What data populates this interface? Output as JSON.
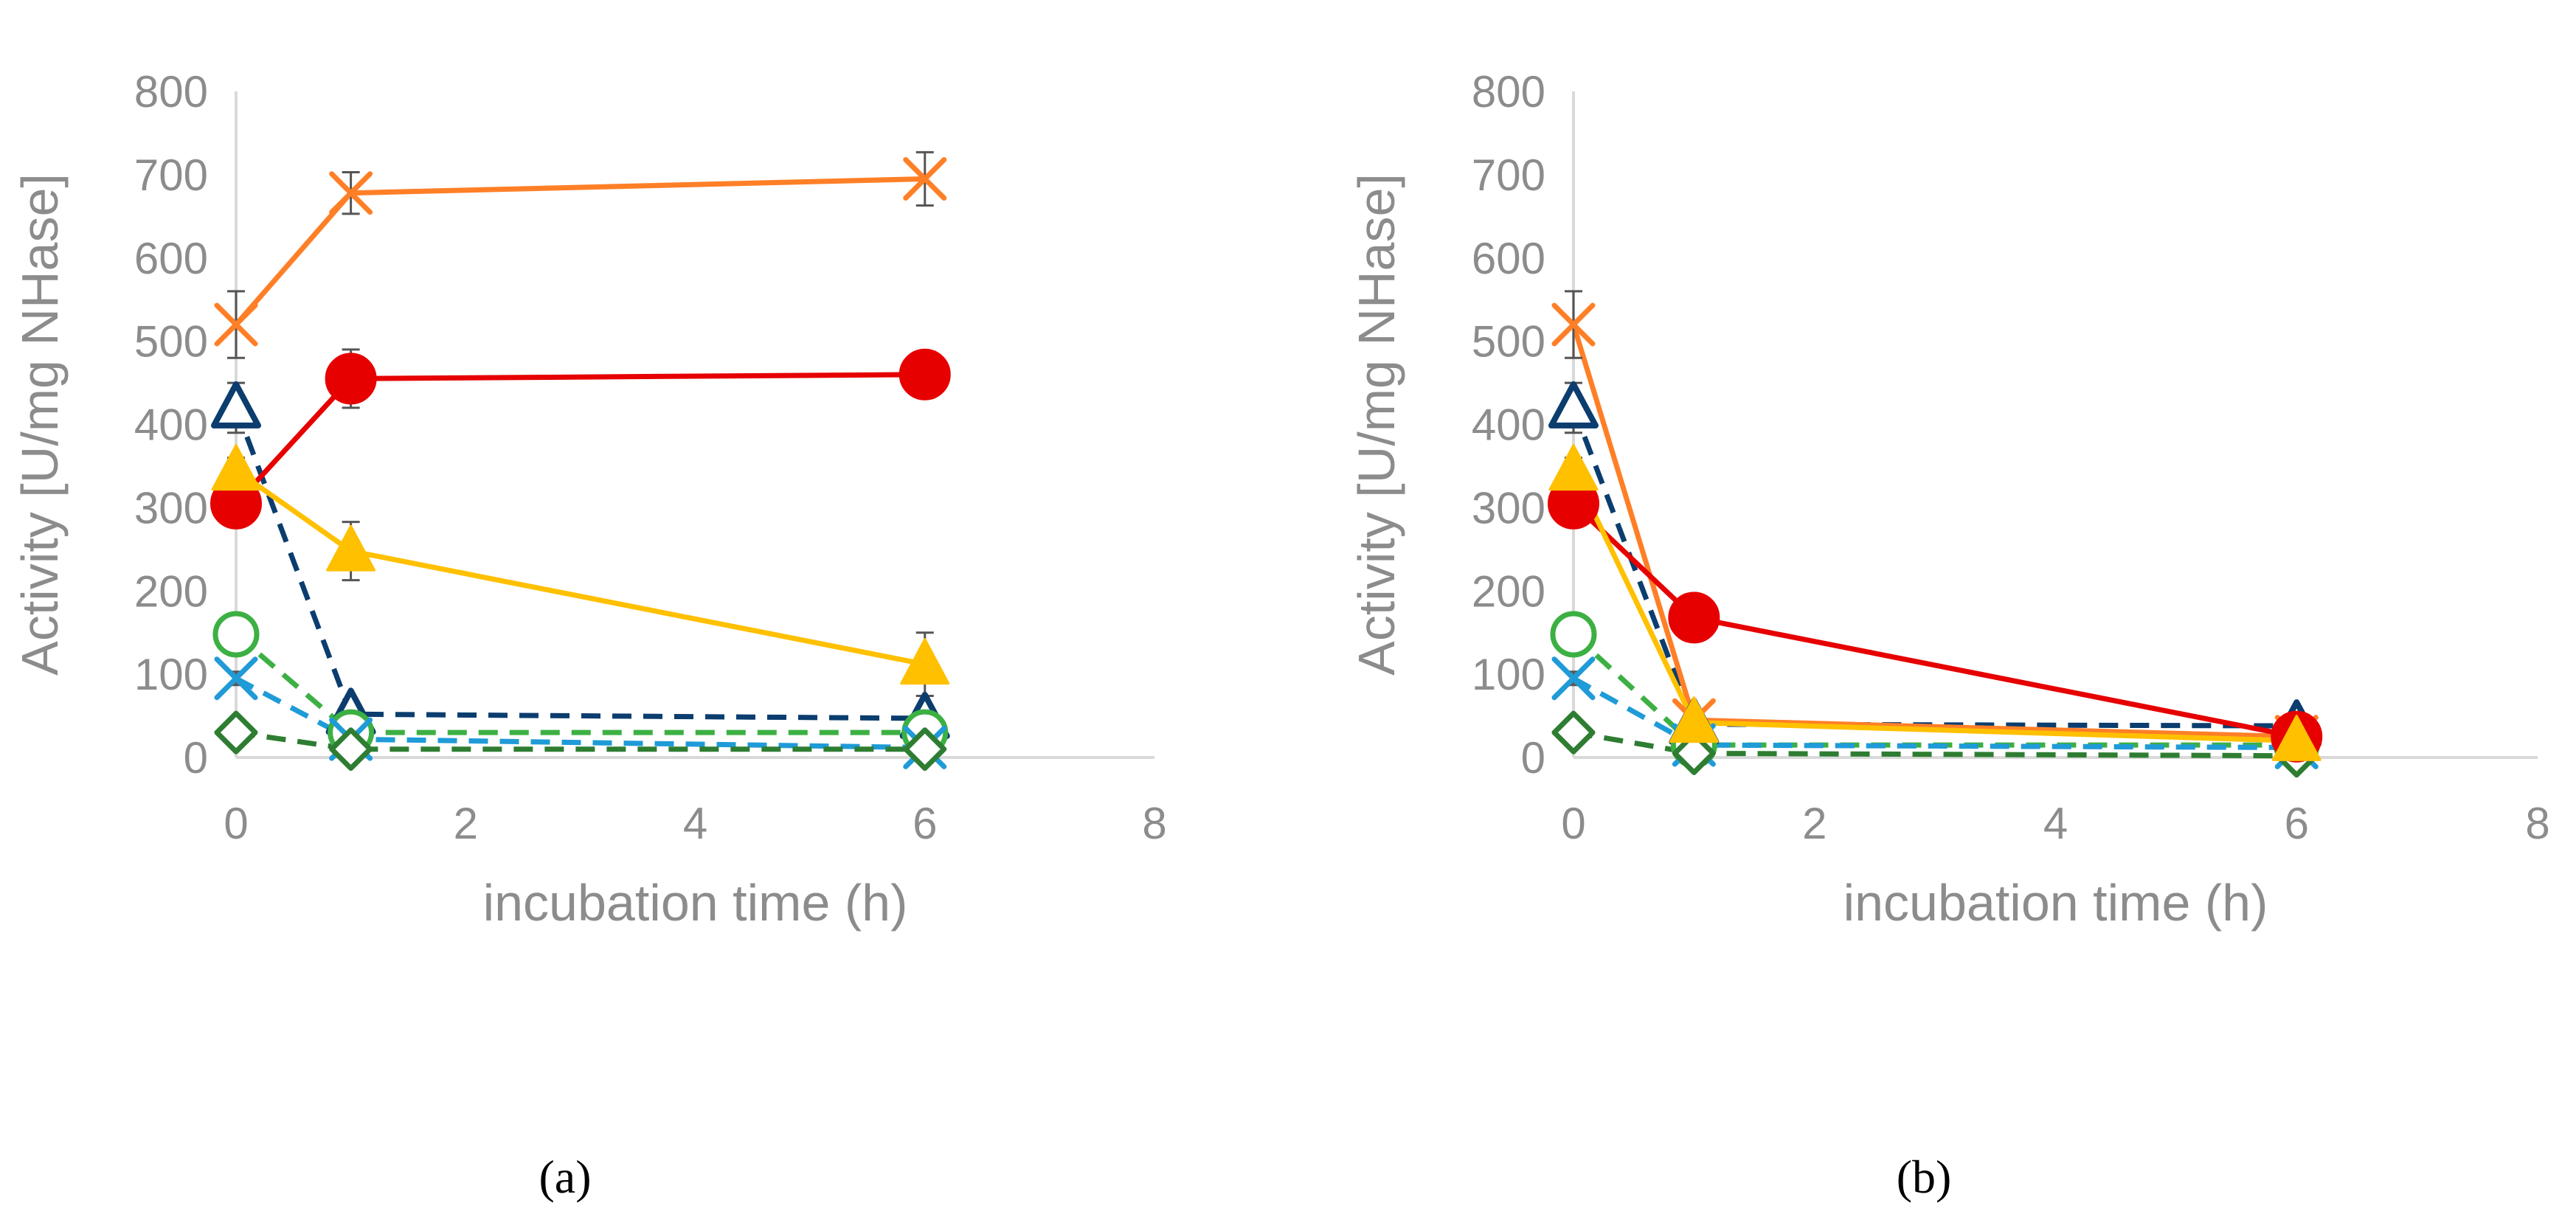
{
  "chart_data": [
    {
      "type": "line",
      "panel_label": "(a)",
      "xlabel": "incubation time (h)",
      "ylabel": "Activity [U/mg NHase]",
      "xlim": [
        0,
        8
      ],
      "ylim": [
        0,
        800
      ],
      "x_ticks": [
        "0",
        "2",
        "4",
        "6",
        "8"
      ],
      "y_ticks": [
        "0",
        "100",
        "200",
        "300",
        "400",
        "500",
        "600",
        "700",
        "800"
      ],
      "grid": false,
      "legend": "none",
      "x": [
        0,
        1,
        6
      ],
      "series": [
        {
          "color": "#ff7f27",
          "line": "solid",
          "marker": "x",
          "values": [
            520,
            678,
            695
          ],
          "error": [
            40,
            25,
            32
          ]
        },
        {
          "color": "#e60000",
          "line": "solid",
          "marker": "circle",
          "values": [
            305,
            455,
            460
          ],
          "error": [
            15,
            35,
            22
          ]
        },
        {
          "color": "#ffc000",
          "line": "solid",
          "marker": "triangle-filled",
          "values": [
            345,
            248,
            112
          ],
          "error": [
            15,
            35,
            38
          ]
        },
        {
          "color": "#0b3d6e",
          "line": "dashed",
          "marker": "triangle-open",
          "values": [
            420,
            52,
            47
          ],
          "error": [
            30,
            10,
            8
          ]
        },
        {
          "color": "#3cb043",
          "line": "dashed",
          "marker": "circle-open",
          "values": [
            148,
            30,
            30
          ],
          "error": [
            8,
            5,
            5
          ]
        },
        {
          "color": "#1f9bd7",
          "line": "dashed",
          "marker": "x",
          "values": [
            95,
            22,
            12
          ],
          "error": [
            8,
            5,
            5
          ]
        },
        {
          "color": "#2e7d32",
          "line": "dashed",
          "marker": "diamond-open",
          "values": [
            30,
            10,
            10
          ],
          "error": [
            5,
            4,
            4
          ]
        }
      ]
    },
    {
      "type": "line",
      "panel_label": "(b)",
      "xlabel": "incubation time (h)",
      "ylabel": "Activity [U/mg NHase]",
      "xlim": [
        0,
        8
      ],
      "ylim": [
        0,
        800
      ],
      "x_ticks": [
        "0",
        "2",
        "4",
        "6",
        "8"
      ],
      "y_ticks": [
        "0",
        "100",
        "200",
        "300",
        "400",
        "500",
        "600",
        "700",
        "800"
      ],
      "grid": false,
      "legend": "none",
      "x": [
        0,
        1,
        6
      ],
      "series": [
        {
          "color": "#ff7f27",
          "line": "solid",
          "marker": "x",
          "values": [
            520,
            45,
            25
          ],
          "error": [
            40,
            8,
            5
          ]
        },
        {
          "color": "#e60000",
          "line": "solid",
          "marker": "circle",
          "values": [
            305,
            168,
            25
          ],
          "error": [
            15,
            10,
            5
          ]
        },
        {
          "color": "#ffc000",
          "line": "solid",
          "marker": "triangle-filled",
          "values": [
            345,
            42,
            20
          ],
          "error": [
            15,
            6,
            5
          ]
        },
        {
          "color": "#0b3d6e",
          "line": "dashed",
          "marker": "triangle-open",
          "values": [
            420,
            40,
            38
          ],
          "error": [
            30,
            6,
            6
          ]
        },
        {
          "color": "#3cb043",
          "line": "dashed",
          "marker": "circle-open",
          "values": [
            148,
            15,
            15
          ],
          "error": [
            8,
            4,
            4
          ]
        },
        {
          "color": "#1f9bd7",
          "line": "dashed",
          "marker": "x",
          "values": [
            95,
            15,
            12
          ],
          "error": [
            8,
            4,
            4
          ]
        },
        {
          "color": "#2e7d32",
          "line": "dashed",
          "marker": "diamond-open",
          "values": [
            30,
            5,
            2
          ],
          "error": [
            5,
            3,
            2
          ]
        }
      ]
    }
  ]
}
